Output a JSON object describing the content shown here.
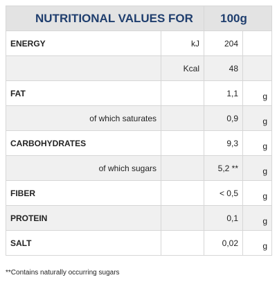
{
  "header": {
    "title": "NUTRITIONAL VALUES FOR",
    "per": "100g"
  },
  "rows": [
    {
      "label": "ENERGY",
      "unit": "kJ",
      "value": "204"
    },
    {
      "unit": "Kcal",
      "value": "48"
    },
    {
      "label": "FAT",
      "value": "1,1",
      "g": "g"
    },
    {
      "sublabel": "of which saturates",
      "value": "0,9",
      "g": "g"
    },
    {
      "label": "CARBOHYDRATES",
      "value": "9,3",
      "g": "g"
    },
    {
      "sublabel": "of which sugars",
      "value": "5,2 **",
      "g": "g"
    },
    {
      "label": "FIBER",
      "value": "< 0,5",
      "g": "g"
    },
    {
      "label": "PROTEIN",
      "value": "0,1",
      "g": "g"
    },
    {
      "label": "SALT",
      "value": "0,02",
      "g": "g"
    }
  ],
  "footnote": "**Contains naturally occurring sugars"
}
